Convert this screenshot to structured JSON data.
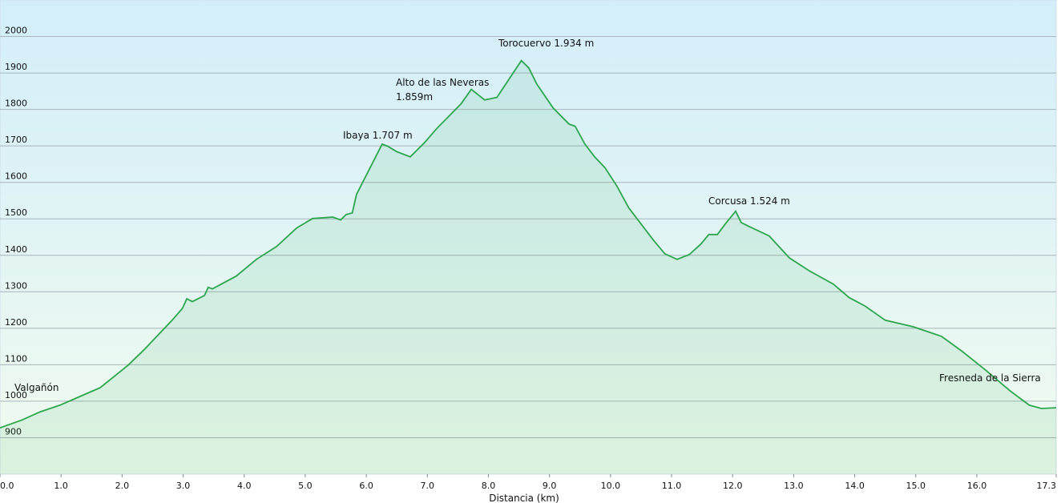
{
  "chart_data": {
    "type": "line",
    "x_label": "Distancia  (km)",
    "annotations": [
      "Valgañón",
      "Ibaya 1.707 m",
      "Alto de las Neveras",
      "1.859m",
      "Torocuervo 1.934 m",
      "Corcusa 1.524 m",
      "Fresneda de la Sierra"
    ],
    "xlim": [
      0,
      17.3
    ],
    "ylim": [
      800,
      2100
    ],
    "xticks": [
      {
        "value": 0,
        "label": "0.0"
      },
      {
        "value": 1,
        "label": "1.0"
      },
      {
        "value": 2,
        "label": "2.0"
      },
      {
        "value": 3,
        "label": "3.0"
      },
      {
        "value": 4,
        "label": "4.0"
      },
      {
        "value": 5,
        "label": "5.0"
      },
      {
        "value": 6,
        "label": "6.0"
      },
      {
        "value": 7,
        "label": "7.0"
      },
      {
        "value": 8,
        "label": "8.0"
      },
      {
        "value": 9,
        "label": "9.0"
      },
      {
        "value": 10,
        "label": "10.0"
      },
      {
        "value": 11,
        "label": "11.0"
      },
      {
        "value": 12,
        "label": "12.0"
      },
      {
        "value": 13,
        "label": "13.0"
      },
      {
        "value": 14,
        "label": "14.0"
      },
      {
        "value": 15,
        "label": "15.0"
      },
      {
        "value": 16,
        "label": "16.0"
      },
      {
        "value": 17.3,
        "label": "17.3"
      }
    ],
    "yticks": [
      900,
      1000,
      1100,
      1200,
      1300,
      1400,
      1500,
      1600,
      1700,
      1800,
      1900,
      2000
    ],
    "grid": true,
    "color": "#2ca64c",
    "x": [
      0,
      0.37,
      0.66,
      0.98,
      1.31,
      1.64,
      1.84,
      2.1,
      2.36,
      2.62,
      2.82,
      2.99,
      3.06,
      3.15,
      3.35,
      3.41,
      3.48,
      3.87,
      4.2,
      4.53,
      4.86,
      5.12,
      5.45,
      5.58,
      5.67,
      5.77,
      5.84,
      6.26,
      6.35,
      6.5,
      6.72,
      6.96,
      7.15,
      7.35,
      7.55,
      7.72,
      7.94,
      8.14,
      8.33,
      8.54,
      8.66,
      8.79,
      9.06,
      9.32,
      9.42,
      9.58,
      9.74,
      9.91,
      10.1,
      10.3,
      10.5,
      10.7,
      10.89,
      11.09,
      11.29,
      11.48,
      11.61,
      11.75,
      11.88,
      12.05,
      12.14,
      12.27,
      12.6,
      12.93,
      13.25,
      13.65,
      13.91,
      14.17,
      14.5,
      14.96,
      15.42,
      15.75,
      16.14,
      16.54,
      16.86,
      17.06,
      17.3
    ],
    "values": [
      927,
      949,
      971,
      989,
      1013,
      1037,
      1064,
      1099,
      1141,
      1187,
      1222,
      1255,
      1281,
      1273,
      1290,
      1312,
      1308,
      1343,
      1389,
      1424,
      1475,
      1501,
      1505,
      1497,
      1512,
      1516,
      1567,
      1705,
      1699,
      1684,
      1670,
      1710,
      1747,
      1781,
      1815,
      1855,
      1826,
      1833,
      1881,
      1934,
      1914,
      1870,
      1804,
      1760,
      1754,
      1705,
      1670,
      1640,
      1591,
      1530,
      1486,
      1442,
      1404,
      1389,
      1402,
      1431,
      1457,
      1457,
      1486,
      1521,
      1490,
      1479,
      1453,
      1393,
      1358,
      1321,
      1284,
      1261,
      1222,
      1204,
      1178,
      1138,
      1086,
      1029,
      989,
      980,
      982
    ]
  }
}
